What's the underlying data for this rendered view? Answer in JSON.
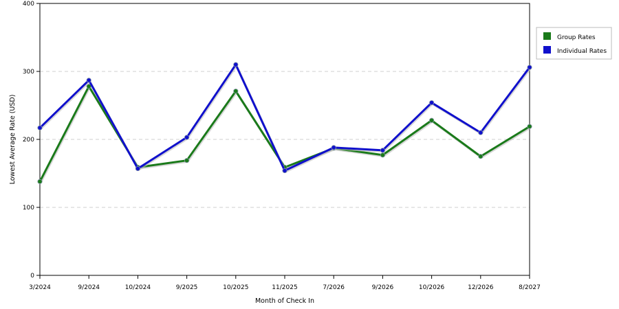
{
  "chart_data": {
    "type": "line",
    "title": "",
    "xlabel": "Month of Check In",
    "ylabel": "Lowest Average Rate (USD)",
    "categories": [
      "3/2024",
      "9/2024",
      "10/2024",
      "9/2025",
      "10/2025",
      "11/2025",
      "7/2026",
      "9/2026",
      "10/2026",
      "12/2026",
      "8/2027"
    ],
    "ylim": [
      0,
      400
    ],
    "yticks": [
      "0",
      "100",
      "200",
      "300",
      "400"
    ],
    "grid": "horizontal-dashed",
    "legend_position": "right",
    "series": [
      {
        "name": "Group Rates",
        "color": "#1a7a1a",
        "values": [
          138,
          278,
          159,
          169,
          271,
          159,
          187,
          177,
          228,
          175,
          219
        ]
      },
      {
        "name": "Individual Rates",
        "color": "#1010cc",
        "values": [
          217,
          287,
          157,
          203,
          310,
          154,
          188,
          184,
          254,
          210,
          306
        ]
      }
    ]
  }
}
